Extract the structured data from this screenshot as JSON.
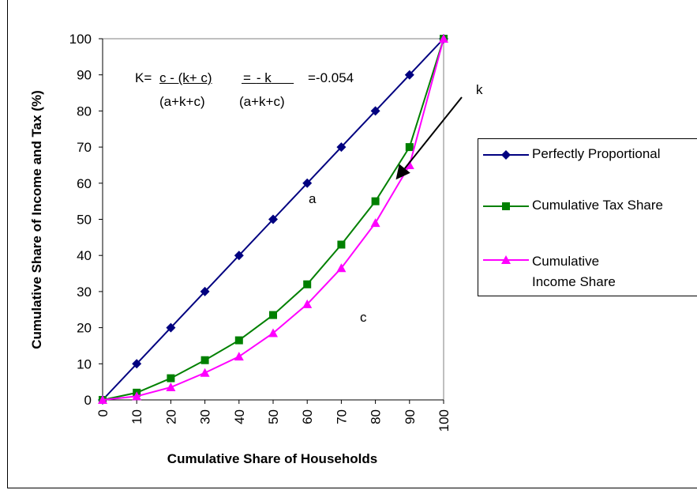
{
  "chart_data": {
    "type": "line",
    "xlabel": "Cumulative Share of Households",
    "ylabel": "Cumulative Share of Income and Tax (%)",
    "x": [
      0,
      10,
      20,
      30,
      40,
      50,
      60,
      70,
      80,
      90,
      100
    ],
    "xlim": [
      0,
      100
    ],
    "ylim": [
      0,
      100
    ],
    "x_ticks": [
      "0",
      "10",
      "20",
      "30",
      "40",
      "50",
      "60",
      "70",
      "80",
      "90",
      "100"
    ],
    "y_ticks": [
      "0",
      "10",
      "20",
      "30",
      "40",
      "50",
      "60",
      "70",
      "80",
      "90",
      "100"
    ],
    "grid": false,
    "legend_position": "right",
    "series": [
      {
        "name": "Perfectly Proportional",
        "color": "#000080",
        "marker": "diamond",
        "values": [
          0,
          10,
          20,
          30,
          40,
          50,
          60,
          70,
          80,
          90,
          100
        ]
      },
      {
        "name": "Cumulative Tax Share",
        "color": "#008000",
        "marker": "square",
        "values": [
          0,
          2,
          6,
          11,
          16.5,
          23.5,
          32,
          43,
          55,
          70,
          100
        ]
      },
      {
        "name": "Cumulative Income Share",
        "color": "#ff00ff",
        "marker": "triangle",
        "values": [
          0,
          1,
          3.5,
          7.5,
          12,
          18.5,
          26.5,
          36.5,
          49,
          65,
          100
        ]
      }
    ],
    "annotations": {
      "formula": {
        "prefix": "K=",
        "num1": "c - (k+ c)",
        "den1": "(a+k+c)",
        "eq2": "=",
        "num2": "- k",
        "den2": "(a+k+c)",
        "result": "=-0.054"
      },
      "region_a": "a",
      "region_c": "c",
      "region_k": "k"
    }
  }
}
